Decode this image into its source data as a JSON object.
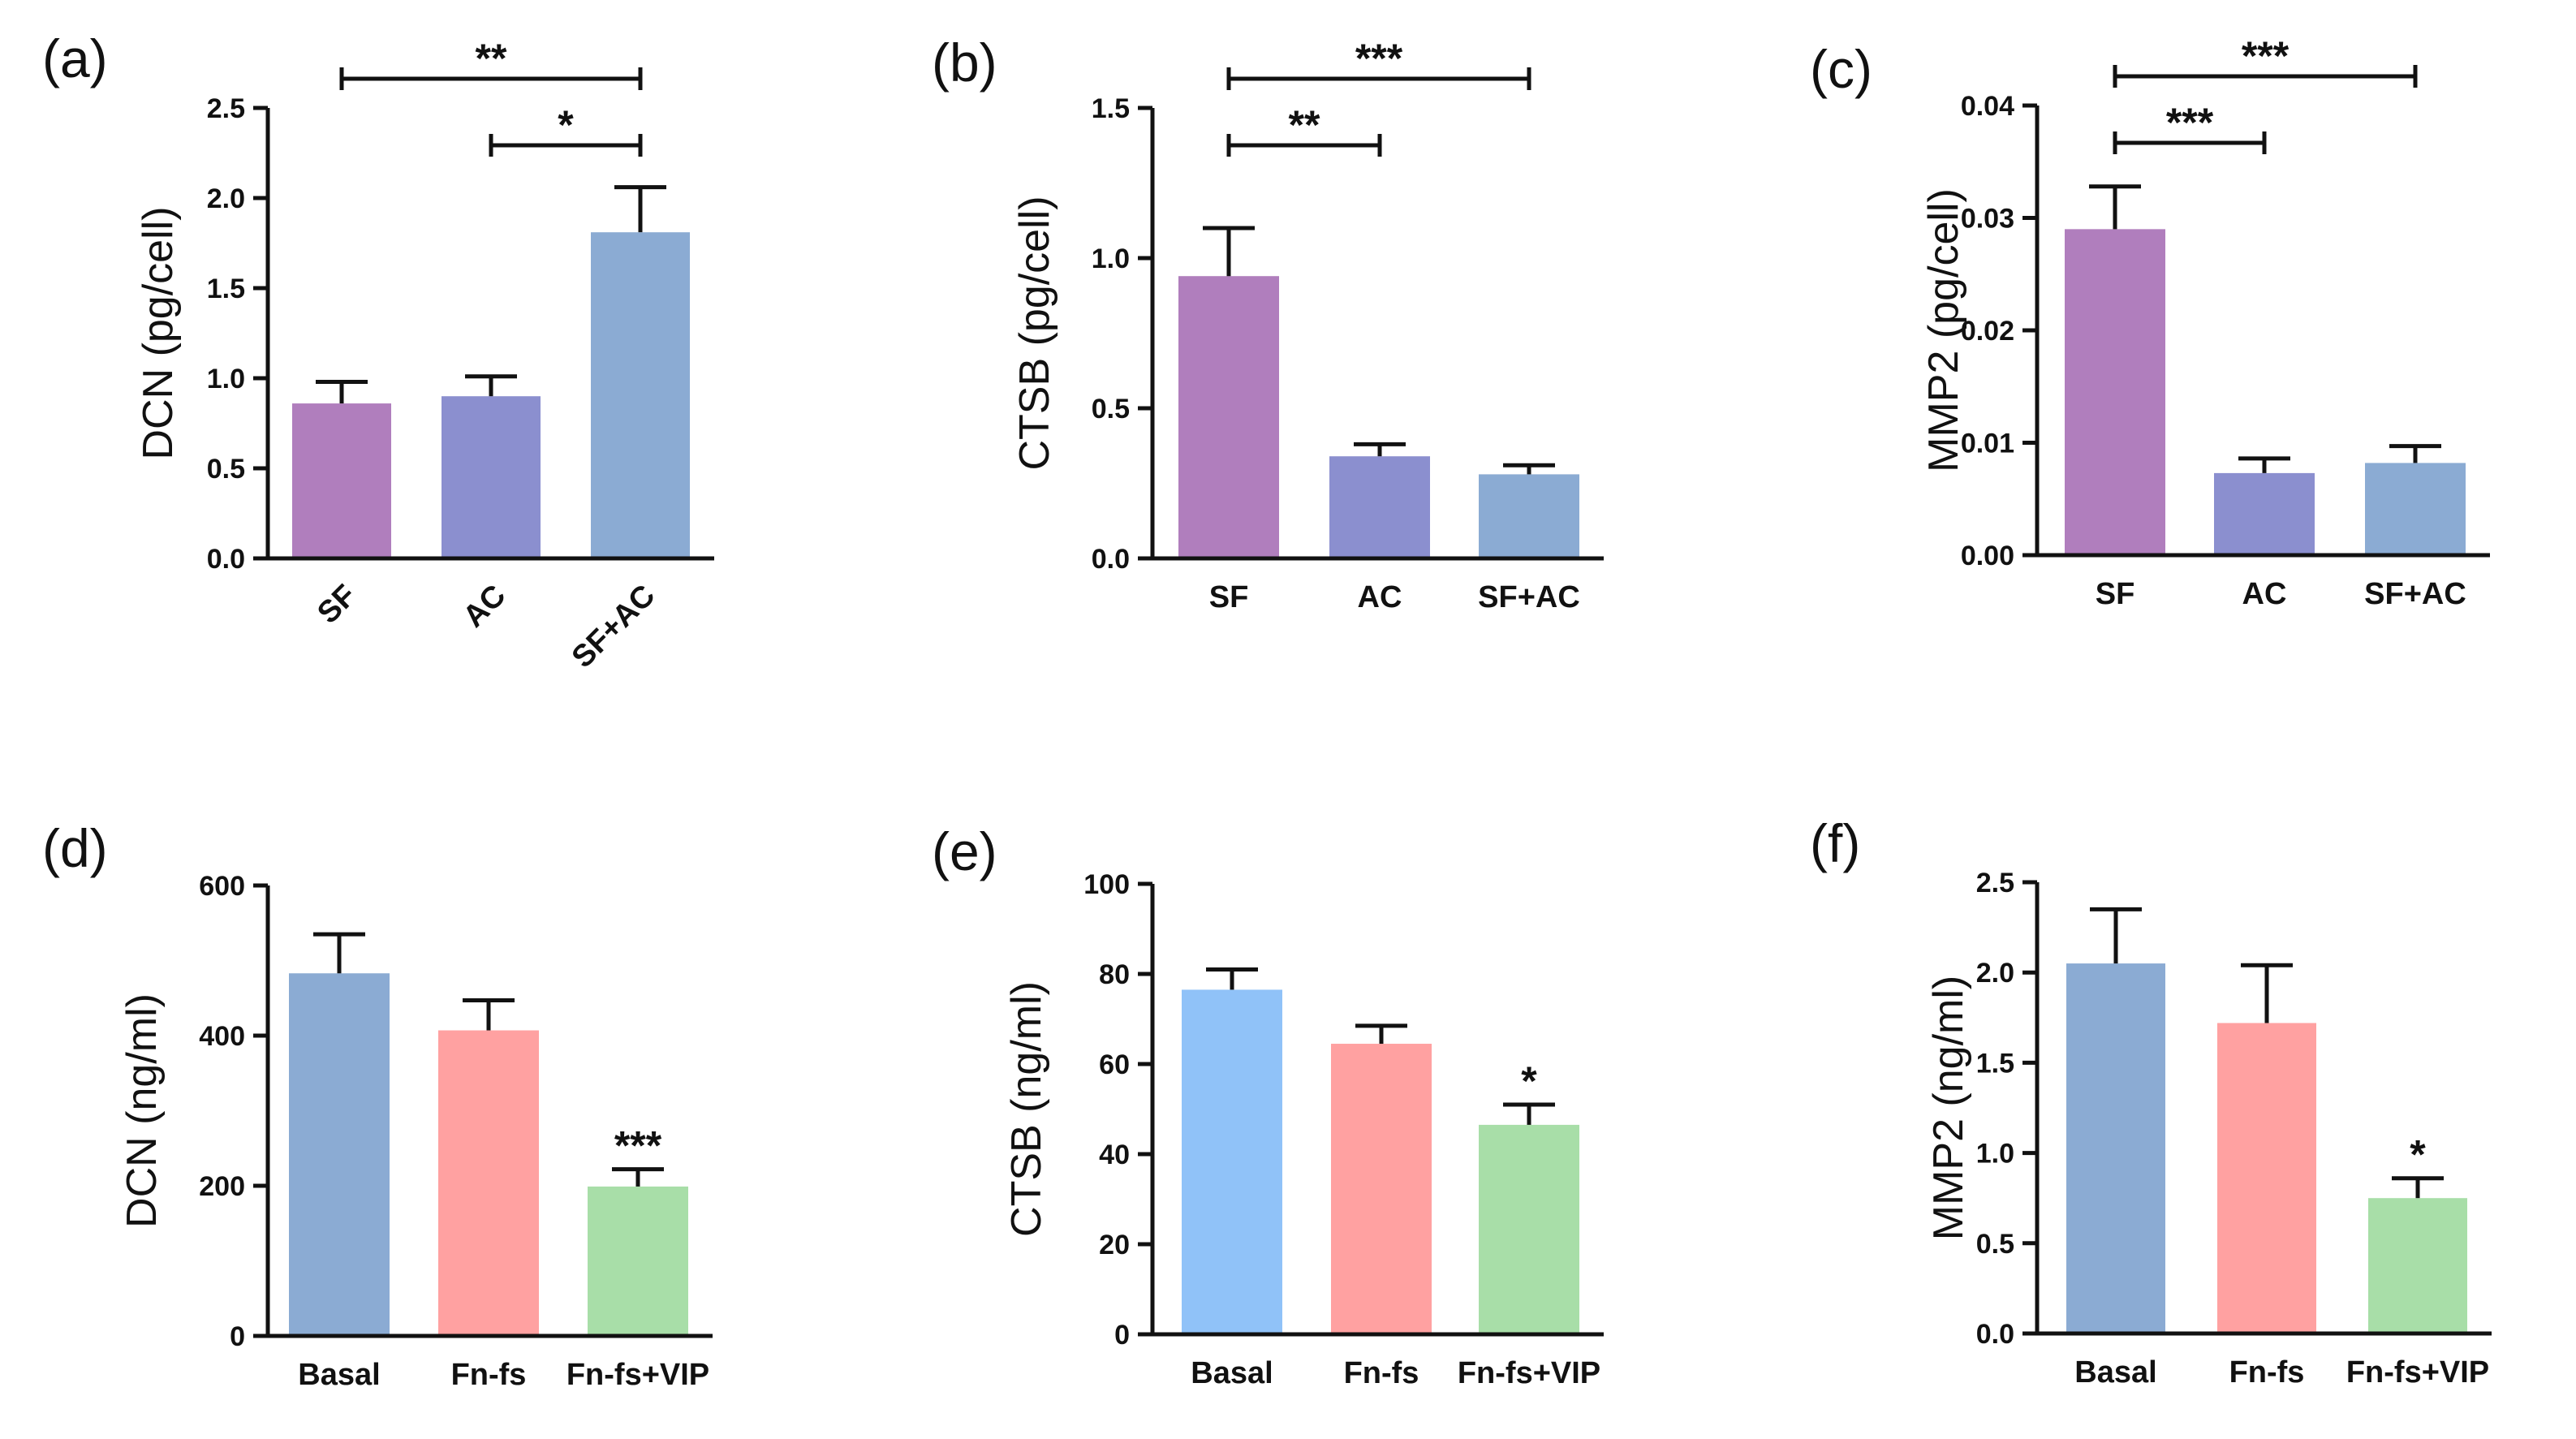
{
  "chart_data": [
    {
      "panel": "(a)",
      "type": "bar",
      "ylabel": "DCN (pg/cell)",
      "ylim": [
        0,
        2.5
      ],
      "yticks": [
        "0.0",
        "0.5",
        "1.0",
        "1.5",
        "2.0",
        "2.5"
      ],
      "yticks_values": [
        0,
        0.5,
        1.0,
        1.5,
        2.0,
        2.5
      ],
      "categories": [
        "SF",
        "AC",
        "SF+AC"
      ],
      "rotate_labels": true,
      "values": [
        0.86,
        0.9,
        1.81
      ],
      "errors": [
        0.12,
        0.11,
        0.25
      ],
      "colors": [
        "#b07ebd",
        "#8b8fcf",
        "#8babd3"
      ],
      "significance": [
        {
          "from": 0,
          "to": 2,
          "label": "**"
        },
        {
          "from": 1,
          "to": 2,
          "label": "*"
        }
      ],
      "point_labels": []
    },
    {
      "panel": "(b)",
      "type": "bar",
      "ylabel": "CTSB (pg/cell)",
      "ylim": [
        0,
        1.5
      ],
      "yticks": [
        "0.0",
        "0.5",
        "1.0",
        "1.5"
      ],
      "yticks_values": [
        0,
        0.5,
        1.0,
        1.5
      ],
      "categories": [
        "SF",
        "AC",
        "SF+AC"
      ],
      "rotate_labels": false,
      "values": [
        0.94,
        0.34,
        0.28
      ],
      "errors": [
        0.16,
        0.04,
        0.03
      ],
      "colors": [
        "#b07ebd",
        "#8b8fcf",
        "#8babd3"
      ],
      "significance": [
        {
          "from": 0,
          "to": 2,
          "label": "***"
        },
        {
          "from": 0,
          "to": 1,
          "label": "**"
        }
      ],
      "point_labels": []
    },
    {
      "panel": "(c)",
      "type": "bar",
      "ylabel": "MMP2 (pg/cell)",
      "ylim": [
        0,
        0.04
      ],
      "yticks": [
        "0.00",
        "0.01",
        "0.02",
        "0.03",
        "0.04"
      ],
      "yticks_values": [
        0,
        0.01,
        0.02,
        0.03,
        0.04
      ],
      "categories": [
        "SF",
        "AC",
        "SF+AC"
      ],
      "rotate_labels": false,
      "values": [
        0.029,
        0.0073,
        0.0082
      ],
      "errors": [
        0.0038,
        0.0013,
        0.0015
      ],
      "colors": [
        "#b07ebd",
        "#8b8fcf",
        "#8babd3"
      ],
      "significance": [
        {
          "from": 0,
          "to": 2,
          "label": "***"
        },
        {
          "from": 0,
          "to": 1,
          "label": "***"
        }
      ],
      "point_labels": []
    },
    {
      "panel": "(d)",
      "type": "bar",
      "ylabel": "DCN (ng/ml)",
      "ylim": [
        0,
        600
      ],
      "yticks": [
        "0",
        "200",
        "400",
        "600"
      ],
      "yticks_values": [
        0,
        200,
        400,
        600
      ],
      "categories": [
        "Basal",
        "Fn-fs",
        "Fn-fs+VIP"
      ],
      "rotate_labels": false,
      "values": [
        483,
        407,
        199
      ],
      "errors": [
        52,
        40,
        23
      ],
      "colors": [
        "#8babd3",
        "#ffa1a1",
        "#a8dea8"
      ],
      "significance": [],
      "point_labels": [
        "",
        "",
        "***"
      ]
    },
    {
      "panel": "(e)",
      "type": "bar",
      "ylabel": "CTSB (ng/ml)",
      "ylim": [
        0,
        100
      ],
      "yticks": [
        "0",
        "20",
        "40",
        "60",
        "80",
        "100"
      ],
      "yticks_values": [
        0,
        20,
        40,
        60,
        80,
        100
      ],
      "categories": [
        "Basal",
        "Fn-fs",
        "Fn-fs+VIP"
      ],
      "rotate_labels": false,
      "values": [
        76.5,
        64.5,
        46.5
      ],
      "errors": [
        4.5,
        4.0,
        4.5
      ],
      "colors": [
        "#90c2f8",
        "#ffa1a1",
        "#a8dea8"
      ],
      "significance": [],
      "point_labels": [
        "",
        "",
        "*"
      ]
    },
    {
      "panel": "(f)",
      "type": "bar",
      "ylabel": "MMP2 (ng/ml)",
      "ylim": [
        0,
        2.5
      ],
      "yticks": [
        "0.0",
        "0.5",
        "1.0",
        "1.5",
        "2.0",
        "2.5"
      ],
      "yticks_values": [
        0,
        0.5,
        1.0,
        1.5,
        2.0,
        2.5
      ],
      "categories": [
        "Basal",
        "Fn-fs",
        "Fn-fs+VIP"
      ],
      "rotate_labels": false,
      "values": [
        2.05,
        1.72,
        0.75
      ],
      "errors": [
        0.3,
        0.32,
        0.11
      ],
      "colors": [
        "#8babd3",
        "#ffa1a1",
        "#a8dea8"
      ],
      "significance": [],
      "point_labels": [
        "",
        "",
        "*"
      ]
    }
  ]
}
